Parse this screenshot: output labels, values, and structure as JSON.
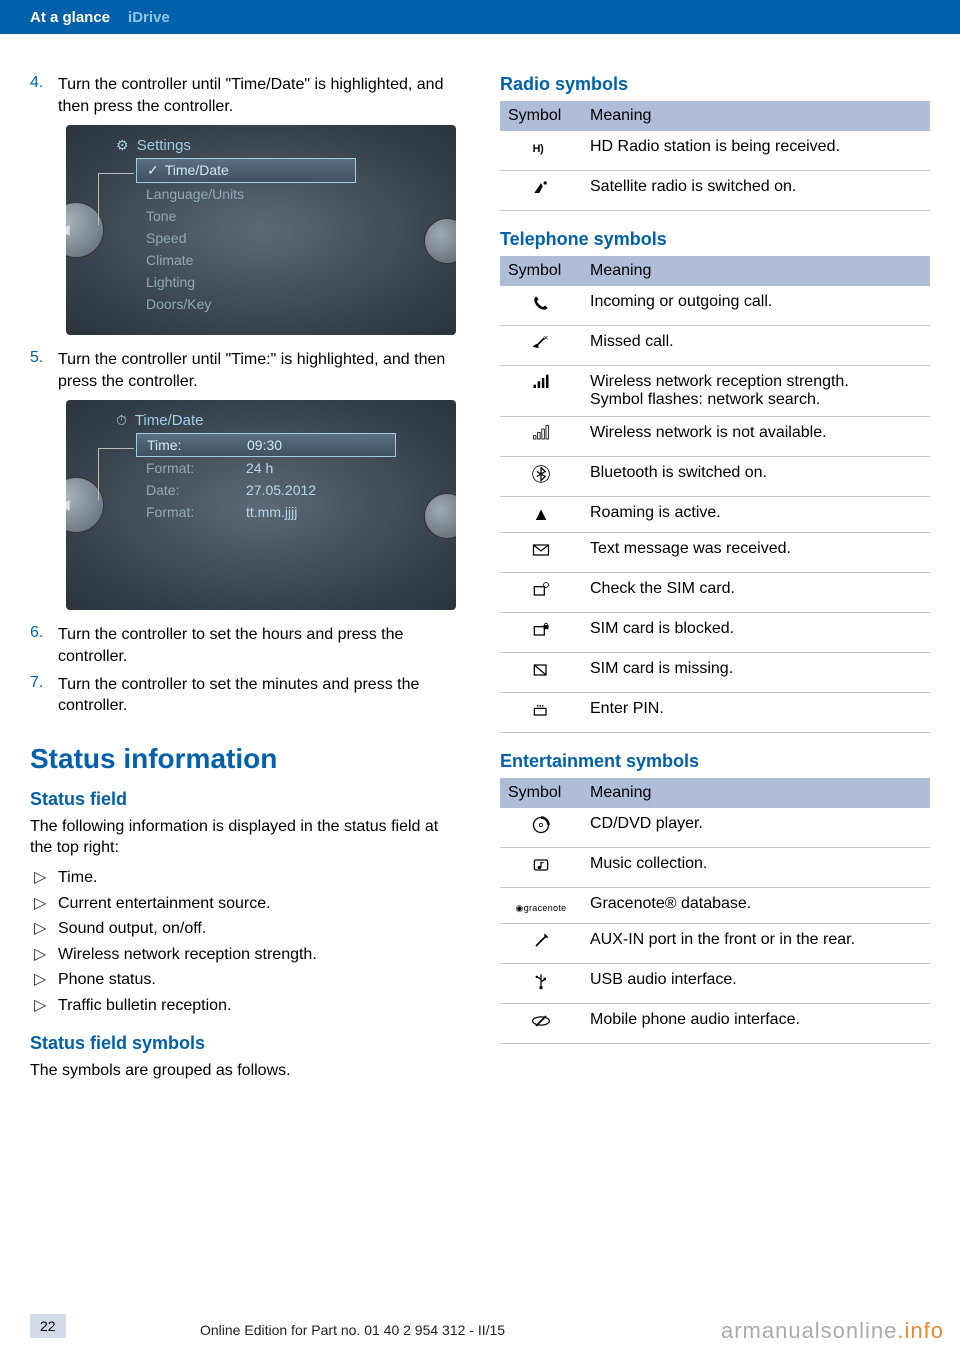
{
  "header": {
    "section": "At a glance",
    "subsection": "iDrive"
  },
  "colors": {
    "brand_blue": "#0060a9",
    "header_bg": "#0060a9",
    "header_light": "#8fc4e8",
    "table_header_bg": "#b0bdd9",
    "screenshot_text": "#9fcde8",
    "pagebox_bg": "#d3dbe8",
    "watermark_grey": "#aaaaaa",
    "watermark_orange": "#e58a2e"
  },
  "steps": {
    "s4": {
      "num": "4.",
      "text": "Turn the controller until \"Time/Date\" is highlighted, and then press the controller."
    },
    "s5": {
      "num": "5.",
      "text": "Turn the controller until \"Time:\" is high­lighted, and then press the controller."
    },
    "s6": {
      "num": "6.",
      "text": "Turn the controller to set the hours and press the controller."
    },
    "s7": {
      "num": "7.",
      "text": "Turn the controller to set the minutes and press the controller."
    }
  },
  "screenshot1": {
    "title": "Settings",
    "items": [
      "Time/Date",
      "Language/Units",
      "Tone",
      "Speed",
      "Climate",
      "Lighting",
      "Doors/Key"
    ],
    "selected_index": 0
  },
  "screenshot2": {
    "title": "Time/Date",
    "rows": [
      {
        "k": "Time:",
        "v": "09:30"
      },
      {
        "k": "Format:",
        "v": "24 h"
      },
      {
        "k": "Date:",
        "v": "27.05.2012"
      },
      {
        "k": "Format:",
        "v": "tt.mm.jjjj"
      }
    ],
    "selected_index": 0
  },
  "status_section": {
    "h1": "Status information",
    "h2_field": "Status field",
    "intro": "The following information is displayed in the status field at the top right:",
    "bullets": [
      "Time.",
      "Current entertainment source.",
      "Sound output, on/off.",
      "Wireless network reception strength.",
      "Phone status.",
      "Traffic bulletin reception."
    ],
    "h2_symbols": "Status field symbols",
    "symbols_intro": "The symbols are grouped as follows."
  },
  "radio": {
    "title": "Radio symbols",
    "headers": {
      "symbol": "Symbol",
      "meaning": "Meaning"
    },
    "rows": [
      {
        "icon": "hd",
        "meaning": "HD Radio station is being received."
      },
      {
        "icon": "sat",
        "meaning": "Satellite radio is switched on."
      }
    ]
  },
  "telephone": {
    "title": "Telephone symbols",
    "headers": {
      "symbol": "Symbol",
      "meaning": "Meaning"
    },
    "rows": [
      {
        "icon": "call",
        "meaning": "Incoming or outgoing call."
      },
      {
        "icon": "missed",
        "meaning": "Missed call."
      },
      {
        "icon": "signal",
        "meaning": "Wireless network reception strength.\nSymbol flashes: network search."
      },
      {
        "icon": "nosignal",
        "meaning": "Wireless network is not available."
      },
      {
        "icon": "bluetooth",
        "meaning": "Bluetooth is switched on."
      },
      {
        "icon": "roaming",
        "meaning": "Roaming is active."
      },
      {
        "icon": "msg",
        "meaning": "Text message was received."
      },
      {
        "icon": "simcheck",
        "meaning": "Check the SIM card."
      },
      {
        "icon": "simlock",
        "meaning": "SIM card is blocked."
      },
      {
        "icon": "simmissing",
        "meaning": "SIM card is missing."
      },
      {
        "icon": "pin",
        "meaning": "Enter PIN."
      }
    ]
  },
  "entertainment": {
    "title": "Entertainment symbols",
    "headers": {
      "symbol": "Symbol",
      "meaning": "Meaning"
    },
    "rows": [
      {
        "icon": "cd",
        "meaning": "CD/DVD player."
      },
      {
        "icon": "music",
        "meaning": "Music collection."
      },
      {
        "icon": "gracenote",
        "meaning": "Gracenote® database."
      },
      {
        "icon": "aux",
        "meaning": "AUX-IN port in the front or in the rear."
      },
      {
        "icon": "usb",
        "meaning": "USB audio interface."
      },
      {
        "icon": "phoneaudio",
        "meaning": "Mobile phone audio interface."
      }
    ]
  },
  "footer": {
    "page": "22",
    "text": "Online Edition for Part no. 01 40 2 954 312 - II/15",
    "watermark_a": "armanualsonline",
    "watermark_b": ".info"
  }
}
